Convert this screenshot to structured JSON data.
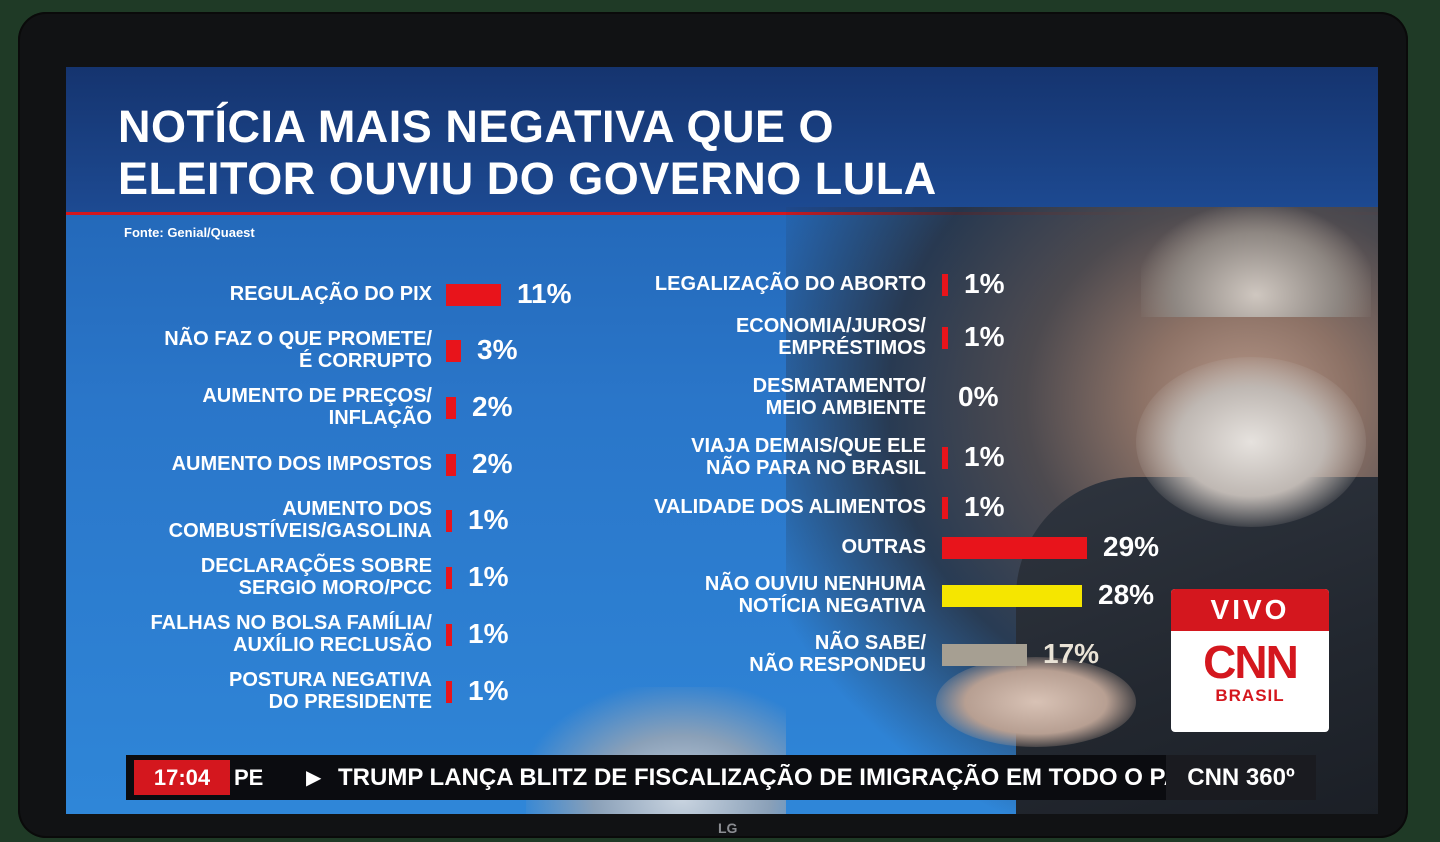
{
  "title_line1": "NOTÍCIA MAIS NEGATIVA QUE O",
  "title_line2": "ELEITOR OUVIU DO GOVERNO LULA",
  "source": "Fonte: Genial/Quaest",
  "colors": {
    "red": "#e8141b",
    "yellow": "#f5e600",
    "gray": "#a69f92"
  },
  "chart_data": {
    "type": "bar",
    "orientation": "horizontal",
    "unit": "%",
    "categories": [
      "REGULAÇÃO DO PIX",
      "NÃO FAZ O QUE PROMETE/\nÉ CORRUPTO",
      "AUMENTO DE PREÇOS/\nINFLAÇÃO",
      "AUMENTO DOS IMPOSTOS",
      "AUMENTO DOS\nCOMBUSTÍVEIS/GASOLINA",
      "DECLARAÇÕES SOBRE\nSERGIO MORO/PCC",
      "FALHAS NO BOLSA FAMÍLIA/\nAUXÍLIO RECLUSÃO",
      "POSTURA NEGATIVA\nDO PRESIDENTE",
      "LEGALIZAÇÃO DO ABORTO",
      "ECONOMIA/JUROS/\nEMPRÉSTIMOS",
      "DESMATAMENTO/\nMEIO AMBIENTE",
      "VIAJA DEMAIS/QUE ELE\nNÃO PARA NO BRASIL",
      "VALIDADE DOS ALIMENTOS",
      "OUTRAS",
      "NÃO OUVIU NENHUMA\nNOTÍCIA NEGATIVA",
      "NÃO SABE/\nNÃO RESPONDEU"
    ],
    "values": [
      11,
      3,
      2,
      2,
      1,
      1,
      1,
      1,
      1,
      1,
      0,
      1,
      1,
      29,
      28,
      17
    ],
    "value_labels": [
      "11%",
      "3%",
      "2%",
      "2%",
      "1%",
      "1%",
      "1%",
      "1%",
      "1%",
      "1%",
      "0%",
      "1%",
      "1%",
      "29%",
      "28%",
      "17%"
    ],
    "bar_colors": [
      "red",
      "red",
      "red",
      "red",
      "red",
      "red",
      "red",
      "red",
      "red",
      "red",
      "red",
      "red",
      "red",
      "red",
      "yellow",
      "gray"
    ],
    "columns": 2,
    "title": "NOTÍCIA MAIS NEGATIVA QUE O ELEITOR OUVIU DO GOVERNO LULA"
  },
  "badge": {
    "live": "VIVO",
    "logo": "CNN",
    "sub": "BRASIL"
  },
  "ticker": {
    "time": "17:04",
    "prefix": "PE",
    "headline": "TRUMP LANÇA BLITZ DE FISCALIZAÇÃO DE IMIGRAÇÃO EM TODO O PA",
    "show": "CNN 360º"
  },
  "tv_brand": "LG"
}
